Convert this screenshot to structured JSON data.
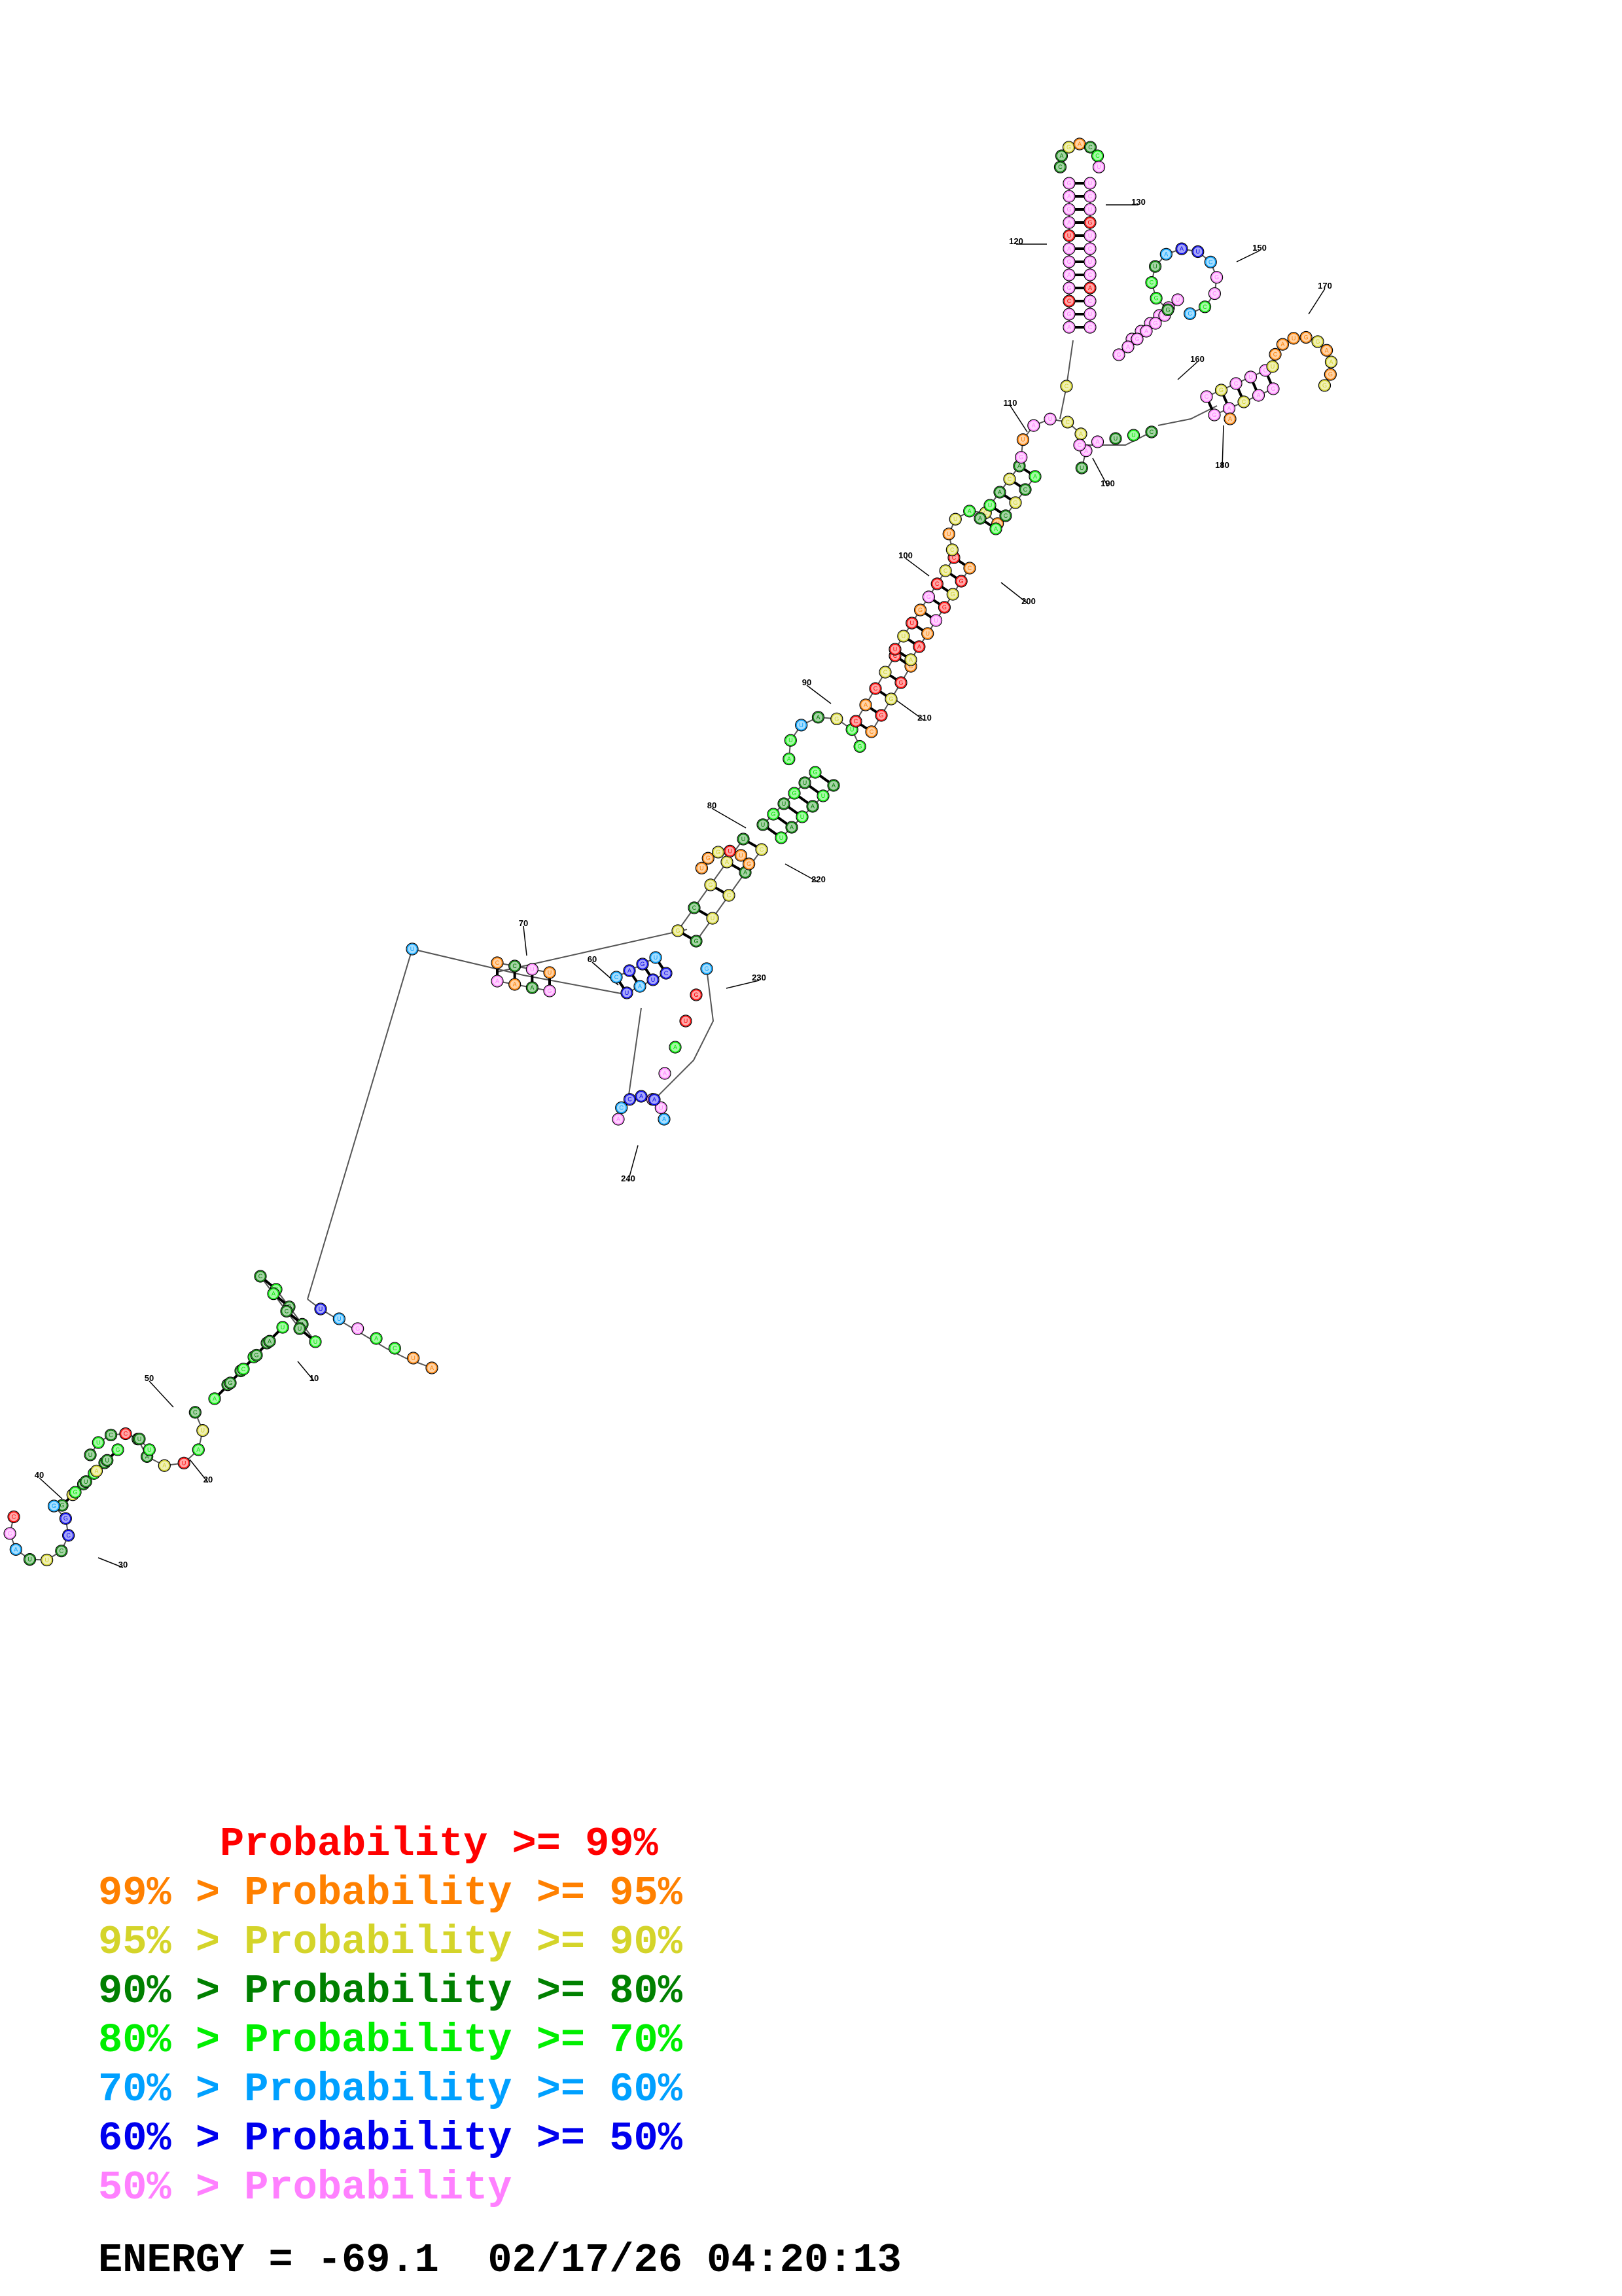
{
  "structure": {
    "position_labels": [
      "10",
      "20",
      "30",
      "40",
      "50",
      "60",
      "70",
      "80",
      "90",
      "100",
      "110",
      "120",
      "130",
      "150",
      "160",
      "170",
      "180",
      "190",
      "200",
      "210",
      "220",
      "230",
      "240"
    ],
    "color_key": {
      "ge99": "#ff0000",
      "95to99": "#ff8000",
      "90to95": "#d4d42a",
      "80to90": "#008000",
      "70to80": "#00ee00",
      "60to70": "#00a0ff",
      "50to60": "#0000ee",
      "lt50": "#ff80ff"
    }
  },
  "legend": [
    {
      "text": "     Probability >= 99%",
      "color": "#ff0000"
    },
    {
      "text": "99% > Probability >= 95%",
      "color": "#ff8000"
    },
    {
      "text": "95% > Probability >= 90%",
      "color": "#d4d42a"
    },
    {
      "text": "90% > Probability >= 80%",
      "color": "#008000"
    },
    {
      "text": "80% > Probability >= 70%",
      "color": "#00ee00"
    },
    {
      "text": "70% > Probability >= 60%",
      "color": "#00a0ff"
    },
    {
      "text": "60% > Probability >= 50%",
      "color": "#0000ee"
    },
    {
      "text": "50% > Probability",
      "color": "#ff80ff"
    }
  ],
  "footer": {
    "energy": "ENERGY = -69.1",
    "timestamp": "02/17/26 04:20:13"
  }
}
